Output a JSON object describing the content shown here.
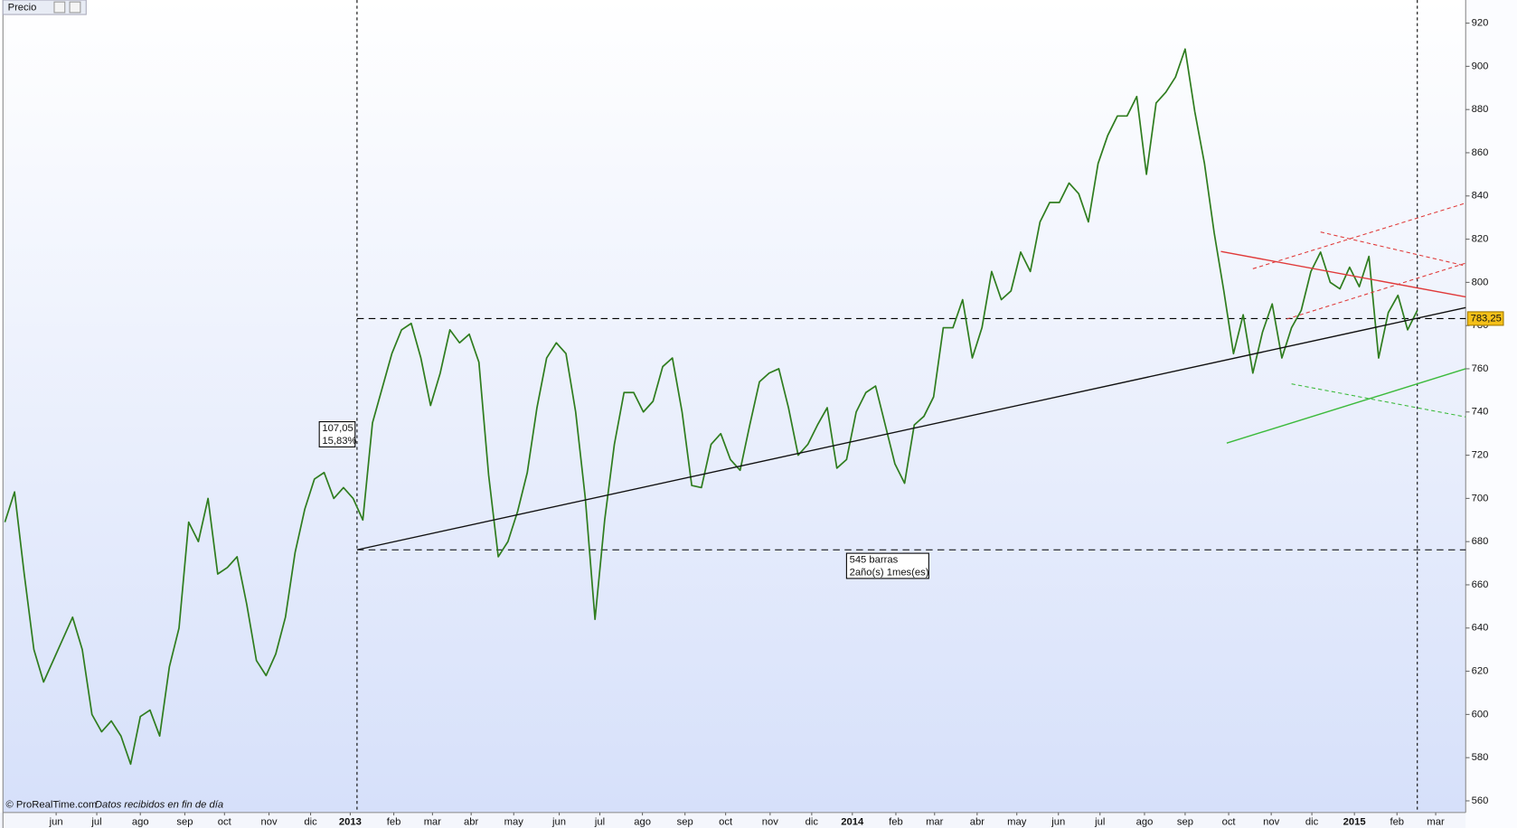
{
  "chart_data": {
    "type": "line",
    "title": "Precio",
    "color": "#2f7d1f",
    "values": [
      689,
      703,
      665,
      630,
      615,
      625,
      635,
      645,
      630,
      600,
      592,
      597,
      590,
      577,
      599,
      602,
      590,
      622,
      640,
      689,
      680,
      700,
      665,
      668,
      673,
      651,
      625,
      618,
      628,
      645,
      675,
      695,
      709,
      712,
      700,
      705,
      700,
      690,
      735,
      751,
      767,
      778,
      781,
      765,
      743,
      758,
      778,
      772,
      776,
      763,
      711,
      673,
      680,
      694,
      712,
      742,
      765,
      772,
      767,
      740,
      700,
      644,
      690,
      725,
      749,
      749,
      740,
      745,
      761,
      765,
      740,
      706,
      705,
      725,
      730,
      718,
      713,
      734,
      754,
      758,
      760,
      742,
      720,
      725,
      734,
      742,
      714,
      718,
      740,
      749,
      752,
      734,
      716,
      707,
      734,
      738,
      747,
      779,
      779,
      792,
      765,
      779,
      805,
      792,
      796,
      814,
      805,
      828,
      837,
      837,
      846,
      841,
      828,
      855,
      868,
      877,
      877,
      886,
      850,
      883,
      888,
      895,
      908,
      879,
      855,
      823,
      796,
      767,
      785,
      758,
      777,
      790,
      765,
      779,
      787,
      805,
      814,
      800,
      797,
      807,
      798,
      812,
      765,
      786,
      794,
      778,
      787
    ],
    "xlim": [
      -0.2,
      151
    ],
    "ylim": [
      554.6,
      930.7
    ],
    "yticks": [
      560,
      580,
      600,
      620,
      640,
      660,
      680,
      700,
      720,
      740,
      760,
      780,
      800,
      820,
      840,
      860,
      880,
      900,
      920
    ],
    "xticks": [
      {
        "value": 5.3,
        "label": "jun"
      },
      {
        "value": 9.5,
        "label": "jul"
      },
      {
        "value": 14,
        "label": "ago"
      },
      {
        "value": 18.6,
        "label": "sep"
      },
      {
        "value": 22.7,
        "label": "oct"
      },
      {
        "value": 27.3,
        "label": "nov"
      },
      {
        "value": 31.6,
        "label": "dic"
      },
      {
        "value": 35.7,
        "label": "2013"
      },
      {
        "value": 40.2,
        "label": "feb"
      },
      {
        "value": 44.2,
        "label": "mar"
      },
      {
        "value": 48.2,
        "label": "abr"
      },
      {
        "value": 52.6,
        "label": "may"
      },
      {
        "value": 57.3,
        "label": "jun"
      },
      {
        "value": 61.5,
        "label": "jul"
      },
      {
        "value": 65.9,
        "label": "ago"
      },
      {
        "value": 70.3,
        "label": "sep"
      },
      {
        "value": 74.5,
        "label": "oct"
      },
      {
        "value": 79.1,
        "label": "nov"
      },
      {
        "value": 83.4,
        "label": "dic"
      },
      {
        "value": 87.6,
        "label": "2014"
      },
      {
        "value": 92.1,
        "label": "feb"
      },
      {
        "value": 96.1,
        "label": "mar"
      },
      {
        "value": 100.5,
        "label": "abr"
      },
      {
        "value": 104.6,
        "label": "may"
      },
      {
        "value": 108.9,
        "label": "jun"
      },
      {
        "value": 113.2,
        "label": "jul"
      },
      {
        "value": 117.8,
        "label": "ago"
      },
      {
        "value": 122,
        "label": "sep"
      },
      {
        "value": 126.5,
        "label": "oct"
      },
      {
        "value": 130.9,
        "label": "nov"
      },
      {
        "value": 135.1,
        "label": "dic"
      },
      {
        "value": 139.5,
        "label": "2015"
      },
      {
        "value": 143.9,
        "label": "feb"
      },
      {
        "value": 147.9,
        "label": "mar"
      }
    ],
    "last_value": {
      "value": 783.25,
      "label": "783,25"
    },
    "reference_lines": [
      783.25,
      676.2
    ],
    "vertical_lines": [
      36.4,
      146
    ],
    "trend_lines": [
      {
        "x": [
          36.4,
          151
        ],
        "y": [
          676.2,
          788.3
        ],
        "color": "#111111",
        "dashed": false
      },
      {
        "x": [
          125.7,
          151
        ],
        "y": [
          814.3,
          793.3
        ],
        "color": "#e03a3a",
        "dashed": false
      },
      {
        "x": [
          129,
          151
        ],
        "y": [
          806.3,
          836.7
        ],
        "color": "#e03a3a",
        "dashed": true
      },
      {
        "x": [
          132.5,
          151
        ],
        "y": [
          783,
          808.9
        ],
        "color": "#e03a3a",
        "dashed": true
      },
      {
        "x": [
          136,
          151
        ],
        "y": [
          823.3,
          807.6
        ],
        "color": "#e03a3a",
        "dashed": true
      },
      {
        "x": [
          126.3,
          151
        ],
        "y": [
          725.6,
          760
        ],
        "color": "#3cba3c",
        "dashed": false
      },
      {
        "x": [
          133,
          151
        ],
        "y": [
          753,
          737.7
        ],
        "color": "#3cba3c",
        "dashed": true
      }
    ],
    "measure": {
      "difference": {
        "value": 107.05,
        "label": "107,05"
      },
      "percent": {
        "value": 15.83,
        "label": "15,83%"
      },
      "bars": "545 barras",
      "duration": "2año(s) 1mes(es)"
    },
    "footer": "© ProRealTime.com",
    "footer_note": "Datos recibidos en fin de día"
  }
}
